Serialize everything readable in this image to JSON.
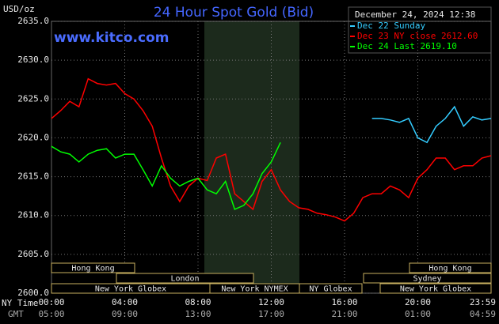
{
  "chart_data": {
    "type": "line",
    "title": "24 Hour Spot Gold (Bid)",
    "ylabel": "USD/oz",
    "source": "www.kitco.com",
    "date": "December 24, 2024 12:38",
    "x_row_labels": [
      "NY Time",
      "GMT"
    ],
    "x": [
      0,
      0.5,
      1,
      1.5,
      2,
      2.5,
      3,
      3.5,
      4,
      4.5,
      5,
      5.5,
      6,
      6.5,
      7,
      7.5,
      8,
      8.5,
      9,
      9.5,
      10,
      10.5,
      11,
      11.5,
      12,
      12.5,
      13,
      13.5,
      14,
      14.5,
      15,
      15.5,
      16,
      16.5,
      17,
      17.5,
      18,
      18.5,
      19,
      19.5,
      20,
      20.5,
      21,
      21.5,
      22,
      22.5,
      23,
      23.5,
      24
    ],
    "series": [
      {
        "name": "Dec 22 Sunday",
        "color": "#33ccff",
        "values": [
          null,
          null,
          null,
          null,
          null,
          null,
          null,
          null,
          null,
          null,
          null,
          null,
          null,
          null,
          null,
          null,
          null,
          null,
          null,
          null,
          null,
          null,
          null,
          null,
          null,
          null,
          null,
          null,
          null,
          null,
          null,
          null,
          null,
          null,
          null,
          2622.5,
          2622.5,
          2622.3,
          2622,
          2622.5,
          2620,
          2619.4,
          2621.5,
          2622.5,
          2624,
          2621.5,
          2622.7,
          2622.3,
          2622.5
        ]
      },
      {
        "name": "Dec 23 NY close 2612.60",
        "color": "#ff0000",
        "values": [
          2622.5,
          2623.5,
          2624.7,
          2624,
          2627.6,
          2627,
          2626.8,
          2627,
          2625.7,
          2625,
          2623.5,
          2621.5,
          2617.4,
          2613.8,
          2611.8,
          2613.8,
          2614.8,
          2614.5,
          2617.4,
          2617.9,
          2612.8,
          2611.8,
          2610.8,
          2614.4,
          2615.9,
          2613.3,
          2611.8,
          2611,
          2610.8,
          2610.3,
          2610.1,
          2609.8,
          2609.3,
          2610.3,
          2612.3,
          2612.8,
          2612.8,
          2613.8,
          2613.3,
          2612.3,
          2614.8,
          2615.9,
          2617.4,
          2617.4,
          2615.9,
          2616.4,
          2616.4,
          2617.4,
          2617.7
        ]
      },
      {
        "name": "Dec 24 Last 2619.10",
        "color": "#00ff00",
        "values": [
          2618.9,
          2618.2,
          2617.9,
          2616.9,
          2617.9,
          2618.4,
          2618.6,
          2617.4,
          2617.9,
          2617.9,
          2615.9,
          2613.8,
          2616.4,
          2614.8,
          2613.8,
          2614.4,
          2614.8,
          2613.3,
          2612.8,
          2614.4,
          2610.8,
          2611.3,
          2612.8,
          2615.4,
          2616.9,
          2619.4,
          null,
          null,
          null,
          null,
          null,
          null,
          null,
          null,
          null,
          null,
          null,
          null,
          null,
          null,
          null,
          null,
          null,
          null,
          null,
          null,
          null,
          null,
          null
        ]
      }
    ],
    "xlim": [
      0,
      24
    ],
    "ylim": [
      2600,
      2635
    ],
    "yticks": [
      {
        "value": 2600,
        "label": "2600.0"
      },
      {
        "value": 2605,
        "label": "2605.0"
      },
      {
        "value": 2610,
        "label": "2610.0"
      },
      {
        "value": 2615,
        "label": "2615.0"
      },
      {
        "value": 2620,
        "label": "2620.0"
      },
      {
        "value": 2625,
        "label": "2625.0"
      },
      {
        "value": 2630,
        "label": "2630.0"
      },
      {
        "value": 2635,
        "label": "2635.0"
      }
    ],
    "xticks": [
      {
        "value": 0,
        "label": "00:00"
      },
      {
        "value": 4,
        "label": "04:00"
      },
      {
        "value": 8,
        "label": "08:00"
      },
      {
        "value": 12,
        "label": "12:00"
      },
      {
        "value": 16,
        "label": "16:00"
      },
      {
        "value": 20,
        "label": "20:00"
      },
      {
        "value": 23.9833,
        "label": "23:59"
      }
    ],
    "x2ticks": [
      {
        "value": 0,
        "label": "05:00"
      },
      {
        "value": 4,
        "label": "09:00"
      },
      {
        "value": 8,
        "label": "13:00"
      },
      {
        "value": 12,
        "label": "17:00"
      },
      {
        "value": 16,
        "label": "21:00"
      },
      {
        "value": 20,
        "label": "01:00"
      },
      {
        "value": 23.9833,
        "label": "04:59"
      }
    ],
    "sessions": [
      "Hong Kong",
      "Hong Kong",
      "London",
      "Sydney",
      "New York Globex",
      "New York NYMEX",
      "NY Globex",
      "New York Globex"
    ],
    "grid": true
  }
}
